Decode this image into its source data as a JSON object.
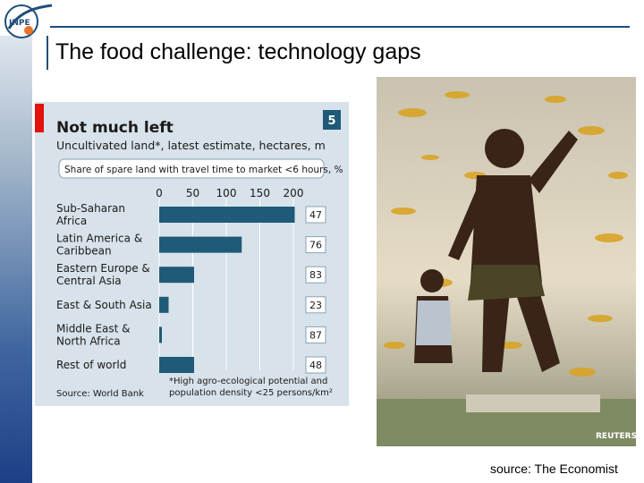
{
  "slide": {
    "title": "The food challenge: technology gaps",
    "source": "source: The Economist",
    "logo_text": "INPE",
    "photo_credit": "REUTERS"
  },
  "colors": {
    "bar": "#1f5a78",
    "panel": "#d7e2ea",
    "accent_red": "#e3120b",
    "title_rule": "#1f4e79"
  },
  "chart_data": {
    "type": "bar",
    "orientation": "horizontal",
    "badge": "5",
    "title": "Not much left",
    "subtitle": "Uncultivated land*, latest estimate, hectares, m",
    "legend_label": "Share of spare land with travel time to market <6 hours, %",
    "categories": [
      [
        "Sub-Saharan",
        "Africa"
      ],
      [
        "Latin America &",
        "Caribbean"
      ],
      [
        "Eastern Europe &",
        "Central Asia"
      ],
      [
        "East & South Asia"
      ],
      [
        "Middle East &",
        "North Africa"
      ],
      [
        "Rest of world"
      ]
    ],
    "values": [
      202,
      123,
      52,
      14,
      4,
      52
    ],
    "shares": [
      "47",
      "76",
      "83",
      "23",
      "87",
      "48"
    ],
    "xlim": [
      0,
      200
    ],
    "xticks": [
      "0",
      "50",
      "100",
      "150",
      "200"
    ],
    "footnote": [
      "*High agro-ecological potential and",
      "population density <25 persons/km²"
    ],
    "source": "Source: World Bank"
  }
}
